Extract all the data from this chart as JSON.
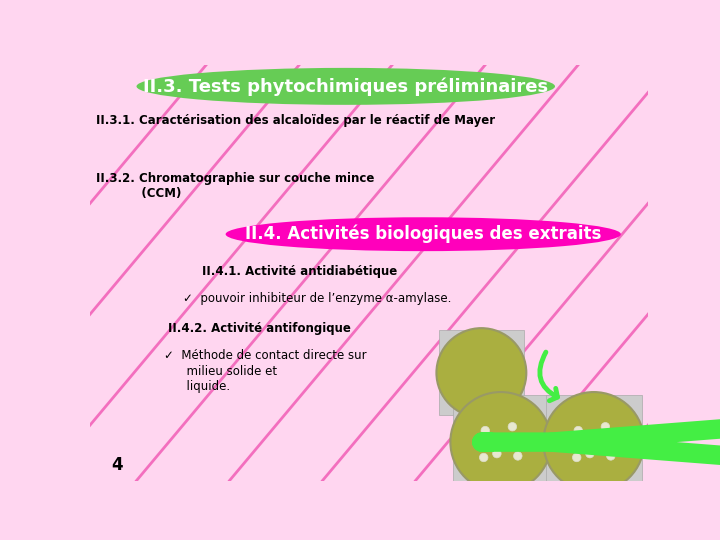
{
  "bg_color": "#FFD6F0",
  "title1_text": "II.3. Tests phytochimiques préliminaires",
  "title1_bg": "#66CC55",
  "title1_color": "white",
  "title2_text": "II.4. Activités biologiques des extraits",
  "title2_bg": "#FF00BB",
  "title2_color": "white",
  "line1": "II.3.1. Caractérisation des alcaloïdes par le réactif de Mayer",
  "line2a": "II.3.2. Chromatographie sur couche mince",
  "line2b": "           (CCM)",
  "line3": "II.4.1. Activité antidiabétique",
  "line4": "✓  pouvoir inhibiteur de l’enzyme α-amylase.",
  "line5": "II.4.2. Activité antifongique",
  "line6a": "✓  Méthode de contact directe sur",
  "line6b": "      milieu solide et",
  "line6c": "      liquide.",
  "footer": "4",
  "diag_color": "#EE44AA",
  "arrow_color": "#44EE44",
  "petri_color": "#AAAF40",
  "petri_edge": "#999966",
  "petri_bg": "#CCCCCC",
  "spot_color": "#E8E8D0"
}
